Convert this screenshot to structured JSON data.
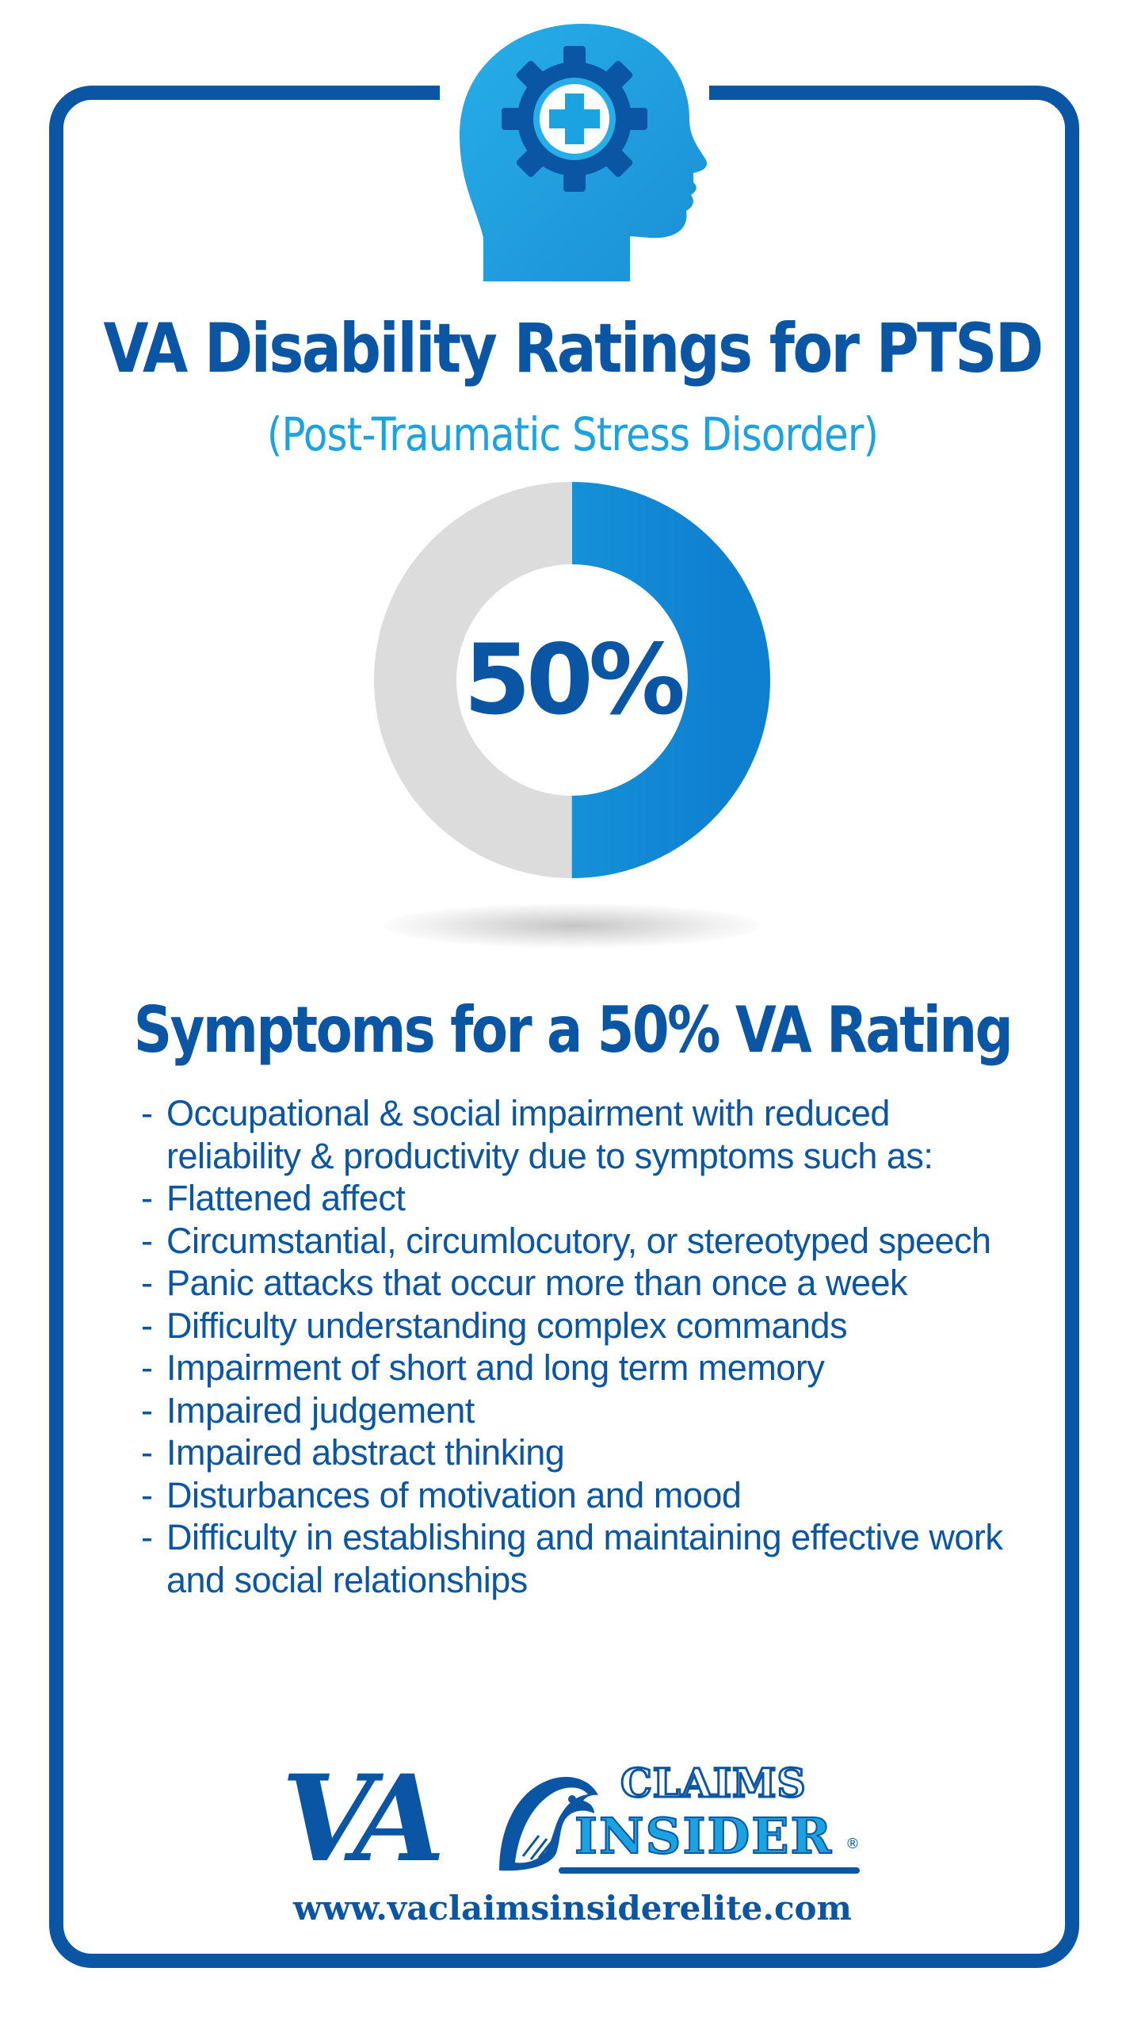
{
  "header": {
    "title": "VA Disability Ratings for PTSD",
    "subtitle": "(Post-Traumatic Stress Disorder)"
  },
  "rating": {
    "label": "50%",
    "value": 50,
    "fill_color": "#1aa3e0",
    "track_color": "#dcdcdc"
  },
  "symptoms": {
    "heading": "Symptoms for a 50% VA Rating",
    "items": [
      "Occupational & social impairment with reduced reliability & productivity due to symptoms such as:",
      "Flattened affect",
      "Circumstantial, circumlocutory, or stereotyped speech",
      "Panic attacks that occur more than once a week",
      "Difficulty understanding complex commands",
      "Impairment of short and long term memory",
      "Impaired judgement",
      "Impaired abstract thinking",
      "Disturbances of motivation and mood",
      "Difficulty in establishing and maintaining effective work and social relationships"
    ]
  },
  "logo": {
    "va": "VA",
    "claims": "CLAIMS",
    "insider": "INSIDER",
    "registered": "®",
    "icon": "eagle-icon"
  },
  "footer": {
    "website": "www.vaclaimsinsiderelite.com"
  },
  "colors": {
    "primary": "#0b56a4",
    "accent": "#1aa3e0"
  },
  "icons": {
    "header": "head-gear-medical-icon"
  }
}
